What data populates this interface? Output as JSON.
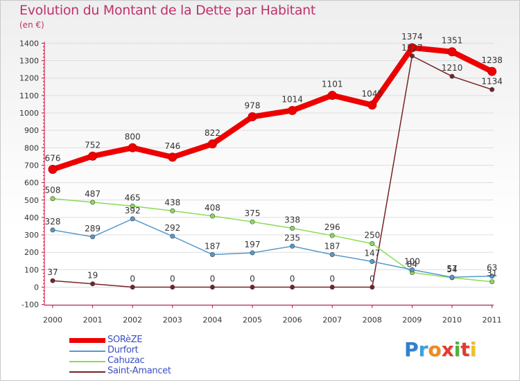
{
  "title": "Evolution du Montant de la Dette par Habitant",
  "unit": "(en €)",
  "logo_text": "Proxiti",
  "colors": {
    "title": "#c0306a",
    "axis": "#d6003a",
    "grid": "#dddddd",
    "legend_text": "#3b4fc4"
  },
  "chart_data": {
    "type": "line",
    "title": "Evolution du Montant de la Dette par Habitant",
    "ylabel": "(en €)",
    "xlabel": "",
    "x": [
      "2000",
      "2001",
      "2002",
      "2003",
      "2004",
      "2005",
      "2006",
      "2007",
      "2008",
      "2009",
      "2010",
      "2011"
    ],
    "ylim": [
      -100,
      1400
    ],
    "yticks": [
      -100,
      0,
      100,
      200,
      300,
      400,
      500,
      600,
      700,
      800,
      900,
      1000,
      1100,
      1200,
      1300,
      1400
    ],
    "grid": "horizontal",
    "legend_position": "bottom-left",
    "series": [
      {
        "name": "SORèZE",
        "color": "#ee0000",
        "values": [
          676,
          752,
          800,
          746,
          822,
          978,
          1014,
          1101,
          1045,
          1374,
          1351,
          1238
        ],
        "labels": [
          "676",
          "752",
          "800",
          "746",
          "822",
          "978",
          "1014",
          "1101",
          "1045",
          "1374",
          "1351",
          "1238"
        ]
      },
      {
        "name": "Durfort",
        "color": "#5599cc",
        "values": [
          328,
          289,
          392,
          292,
          187,
          197,
          235,
          187,
          147,
          100,
          57,
          63
        ],
        "labels": [
          "328",
          "289",
          "392",
          "292",
          "187",
          "197",
          "235",
          "187",
          "147",
          "100",
          "57",
          "63"
        ]
      },
      {
        "name": "Cahuzac",
        "color": "#88dd55",
        "values": [
          508,
          487,
          465,
          438,
          408,
          375,
          338,
          296,
          250,
          84,
          54,
          31
        ],
        "labels": [
          "508",
          "487",
          "465",
          "438",
          "408",
          "375",
          "338",
          "296",
          "250",
          "84",
          "54",
          "31"
        ]
      },
      {
        "name": "Saint-Amancet",
        "color": "#772222",
        "values": [
          37,
          19,
          0,
          0,
          0,
          0,
          0,
          0,
          0,
          1327,
          1210,
          1134
        ],
        "labels": [
          "37",
          "19",
          "0",
          "0",
          "0",
          "0",
          "0",
          "0",
          "0",
          "1327",
          "1210",
          "1134"
        ]
      }
    ]
  }
}
